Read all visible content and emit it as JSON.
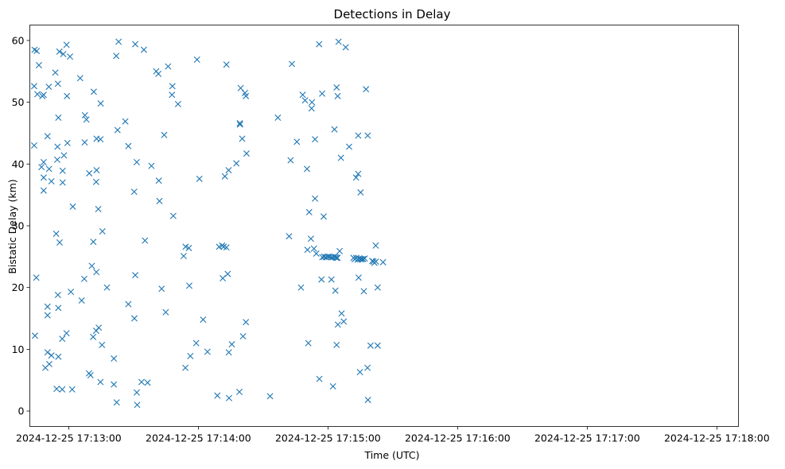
{
  "chart_data": {
    "type": "scatter",
    "title": "Detections in Delay",
    "xlabel": "Time (UTC)",
    "ylabel": "Bistatic Delay (km)",
    "marker": "x",
    "color": "#1f77b4",
    "grid": false,
    "legend": "none",
    "x_unit": "seconds after 2024-12-25 17:13:00 UTC",
    "xlim": [
      -18,
      310
    ],
    "ylim": [
      -2.5,
      62.5
    ],
    "x_ticks": [
      {
        "value": 0,
        "label": "2024-12-25 17:13:00"
      },
      {
        "value": 60,
        "label": "2024-12-25 17:14:00"
      },
      {
        "value": 120,
        "label": "2024-12-25 17:15:00"
      },
      {
        "value": 180,
        "label": "2024-12-25 17:16:00"
      },
      {
        "value": 240,
        "label": "2024-12-25 17:17:00"
      },
      {
        "value": 300,
        "label": "2024-12-25 17:18:00"
      }
    ],
    "y_ticks": [
      {
        "value": 0,
        "label": "0"
      },
      {
        "value": 10,
        "label": "10"
      },
      {
        "value": 20,
        "label": "20"
      },
      {
        "value": 30,
        "label": "30"
      },
      {
        "value": 40,
        "label": "40"
      },
      {
        "value": 50,
        "label": "50"
      },
      {
        "value": 60,
        "label": "60"
      }
    ],
    "points": [
      [
        -15.8,
        58.5
      ],
      [
        -14.8,
        58.3
      ],
      [
        -13.8,
        56.0
      ],
      [
        -16.0,
        52.6
      ],
      [
        -14.5,
        51.3
      ],
      [
        -12.2,
        51.0
      ],
      [
        -11.6,
        51.2
      ],
      [
        -9.2,
        52.5
      ],
      [
        -16.0,
        43.0
      ],
      [
        -12.6,
        39.5
      ],
      [
        -11.6,
        40.3
      ],
      [
        -11.6,
        37.8
      ],
      [
        -11.6,
        35.7
      ],
      [
        -9.8,
        44.5
      ],
      [
        -9.1,
        39.2
      ],
      [
        -8.0,
        37.2
      ],
      [
        -15.0,
        21.6
      ],
      [
        -15.6,
        12.2
      ],
      [
        -10.8,
        7.0
      ],
      [
        -9.8,
        9.5
      ],
      [
        -9.8,
        16.9
      ],
      [
        -9.8,
        15.5
      ],
      [
        -9.0,
        7.6
      ],
      [
        -8.0,
        9.0
      ],
      [
        -6.2,
        54.8
      ],
      [
        -4.3,
        58.2
      ],
      [
        -5.0,
        53.0
      ],
      [
        -2.5,
        57.8
      ],
      [
        -1.0,
        59.3
      ],
      [
        0.6,
        57.4
      ],
      [
        -0.8,
        51.0
      ],
      [
        -4.8,
        47.5
      ],
      [
        -5.2,
        42.8
      ],
      [
        -5.3,
        40.7
      ],
      [
        -2.8,
        38.9
      ],
      [
        -2.2,
        41.4
      ],
      [
        -0.6,
        43.4
      ],
      [
        -2.8,
        37.0
      ],
      [
        -5.8,
        28.7
      ],
      [
        -4.2,
        27.3
      ],
      [
        -5.0,
        18.8
      ],
      [
        -4.8,
        16.7
      ],
      [
        -3.0,
        11.7
      ],
      [
        -1.0,
        12.6
      ],
      [
        -5.6,
        3.6
      ],
      [
        -3.0,
        3.5
      ],
      [
        1.6,
        3.5
      ],
      [
        -4.8,
        8.8
      ],
      [
        1.0,
        19.3
      ],
      [
        1.9,
        33.1
      ],
      [
        5.3,
        53.9
      ],
      [
        6.0,
        17.9
      ],
      [
        7.5,
        47.9
      ],
      [
        8.2,
        47.2
      ],
      [
        7.4,
        43.5
      ],
      [
        9.5,
        38.5
      ],
      [
        7.2,
        21.4
      ],
      [
        9.4,
        6.1
      ],
      [
        10.1,
        5.8
      ],
      [
        10.7,
        23.5
      ],
      [
        11.3,
        12.0
      ],
      [
        11.4,
        27.4
      ],
      [
        11.6,
        51.7
      ],
      [
        12.7,
        37.1
      ],
      [
        12.9,
        39.0
      ],
      [
        12.9,
        44.1
      ],
      [
        12.7,
        13.0
      ],
      [
        12.8,
        22.5
      ],
      [
        13.7,
        32.7
      ],
      [
        13.9,
        13.5
      ],
      [
        14.7,
        44.0
      ],
      [
        14.8,
        49.8
      ],
      [
        14.7,
        4.7
      ],
      [
        15.6,
        29.1
      ],
      [
        15.4,
        10.7
      ],
      [
        17.7,
        20.0
      ],
      [
        20.9,
        8.5
      ],
      [
        20.9,
        4.3
      ],
      [
        22.0,
        57.5
      ],
      [
        23.1,
        59.8
      ],
      [
        22.2,
        1.4
      ],
      [
        22.6,
        45.5
      ],
      [
        26.2,
        46.9
      ],
      [
        27.6,
        42.9
      ],
      [
        27.6,
        17.3
      ],
      [
        30.3,
        35.5
      ],
      [
        30.8,
        22.0
      ],
      [
        30.4,
        15.0
      ],
      [
        31.5,
        40.3
      ],
      [
        31.5,
        3.0
      ],
      [
        31.7,
        1.0
      ],
      [
        30.8,
        59.4
      ],
      [
        33.7,
        4.7
      ],
      [
        34.8,
        58.5
      ],
      [
        35.3,
        27.6
      ],
      [
        36.5,
        4.6
      ],
      [
        38.3,
        39.7
      ],
      [
        40.5,
        55.0
      ],
      [
        41.5,
        54.6
      ],
      [
        41.7,
        37.3
      ],
      [
        42.0,
        34.0
      ],
      [
        43.0,
        19.8
      ],
      [
        44.2,
        44.7
      ],
      [
        44.9,
        16.0
      ],
      [
        46.0,
        55.8
      ],
      [
        47.8,
        51.2
      ],
      [
        48.0,
        52.6
      ],
      [
        48.4,
        31.6
      ],
      [
        50.6,
        49.7
      ],
      [
        53.2,
        25.1
      ],
      [
        54.0,
        7.0
      ],
      [
        54.1,
        26.6
      ],
      [
        55.6,
        26.4
      ],
      [
        55.8,
        20.3
      ],
      [
        56.3,
        8.9
      ],
      [
        59.0,
        11.0
      ],
      [
        59.4,
        56.9
      ],
      [
        60.5,
        37.6
      ],
      [
        62.2,
        14.8
      ],
      [
        64.2,
        9.6
      ],
      [
        68.8,
        2.5
      ],
      [
        69.6,
        26.6
      ],
      [
        71.0,
        26.8
      ],
      [
        71.3,
        21.5
      ],
      [
        71.7,
        26.6
      ],
      [
        72.3,
        38.0
      ],
      [
        73.0,
        56.1
      ],
      [
        73.0,
        26.5
      ],
      [
        73.6,
        22.2
      ],
      [
        74.0,
        39.0
      ],
      [
        74.1,
        9.5
      ],
      [
        74.2,
        2.1
      ],
      [
        75.5,
        10.8
      ],
      [
        77.6,
        40.1
      ],
      [
        79.2,
        46.6
      ],
      [
        79.3,
        46.4
      ],
      [
        79.0,
        3.1
      ],
      [
        79.6,
        52.3
      ],
      [
        80.3,
        44.1
      ],
      [
        80.7,
        12.1
      ],
      [
        81.6,
        51.5
      ],
      [
        82.0,
        51.0
      ],
      [
        82.0,
        14.4
      ],
      [
        82.3,
        41.7
      ],
      [
        93.2,
        2.4
      ],
      [
        96.8,
        47.5
      ],
      [
        102.0,
        28.3
      ],
      [
        102.7,
        40.6
      ],
      [
        103.3,
        56.2
      ],
      [
        105.6,
        43.6
      ],
      [
        107.5,
        20.0
      ],
      [
        108.3,
        51.2
      ],
      [
        109.4,
        50.3
      ],
      [
        110.3,
        39.2
      ],
      [
        110.5,
        26.1
      ],
      [
        110.9,
        11.0
      ],
      [
        111.3,
        32.2
      ],
      [
        112.1,
        27.9
      ],
      [
        112.4,
        49.0
      ],
      [
        112.6,
        50.0
      ],
      [
        113.5,
        26.3
      ],
      [
        114.0,
        44.0
      ],
      [
        114.0,
        34.4
      ],
      [
        114.6,
        25.5
      ],
      [
        115.9,
        59.4
      ],
      [
        116.0,
        5.2
      ],
      [
        117.0,
        21.3
      ],
      [
        117.3,
        51.4
      ],
      [
        118.0,
        31.5
      ],
      [
        117.4,
        24.9
      ],
      [
        118.2,
        25.0
      ],
      [
        119.0,
        24.9
      ],
      [
        119.8,
        25.0
      ],
      [
        120.6,
        25.0
      ],
      [
        121.4,
        24.9
      ],
      [
        122.2,
        24.9
      ],
      [
        123.0,
        25.0
      ],
      [
        123.5,
        24.9
      ],
      [
        124.0,
        24.8
      ],
      [
        124.4,
        24.8
      ],
      [
        121.6,
        21.3
      ],
      [
        122.3,
        4.0
      ],
      [
        123.0,
        45.6
      ],
      [
        123.4,
        19.5
      ],
      [
        124.0,
        52.4
      ],
      [
        124.5,
        51.0
      ],
      [
        124.6,
        14.0
      ],
      [
        124.9,
        59.8
      ],
      [
        124.0,
        10.7
      ],
      [
        125.4,
        25.9
      ],
      [
        126.0,
        41.0
      ],
      [
        126.3,
        15.8
      ],
      [
        127.3,
        14.5
      ],
      [
        128.2,
        58.9
      ],
      [
        129.8,
        42.8
      ],
      [
        131.8,
        24.8
      ],
      [
        132.4,
        24.6
      ],
      [
        133.1,
        24.8
      ],
      [
        133.7,
        24.5
      ],
      [
        134.3,
        24.7
      ],
      [
        135.0,
        24.6
      ],
      [
        135.6,
        24.6
      ],
      [
        136.3,
        24.6
      ],
      [
        137.0,
        24.7
      ],
      [
        133.0,
        37.8
      ],
      [
        134.0,
        44.6
      ],
      [
        134.0,
        38.4
      ],
      [
        134.2,
        21.6
      ],
      [
        134.8,
        6.3
      ],
      [
        135.1,
        35.4
      ],
      [
        136.6,
        19.4
      ],
      [
        137.6,
        52.1
      ],
      [
        138.4,
        44.6
      ],
      [
        138.3,
        7.0
      ],
      [
        138.5,
        1.8
      ],
      [
        139.7,
        10.6
      ],
      [
        140.5,
        24.3
      ],
      [
        141.0,
        24.2
      ],
      [
        141.5,
        24.0
      ],
      [
        142.2,
        24.2
      ],
      [
        142.1,
        26.8
      ],
      [
        143.0,
        20.0
      ],
      [
        143.0,
        10.6
      ],
      [
        145.5,
        24.1
      ]
    ]
  }
}
